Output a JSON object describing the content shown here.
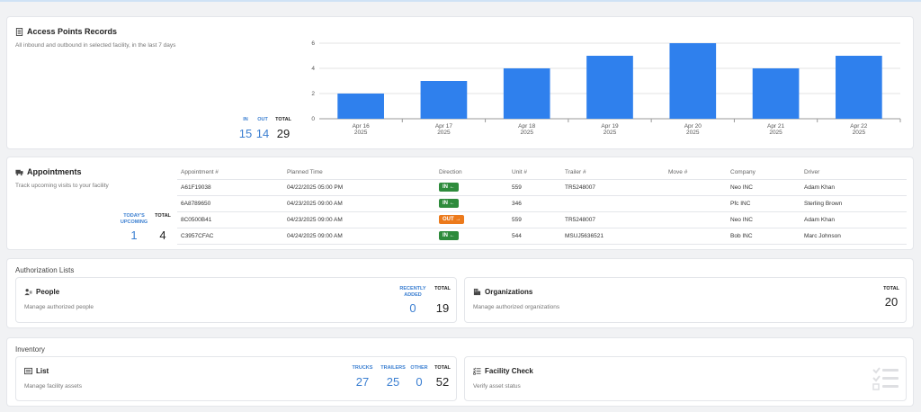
{
  "access_points": {
    "title": "Access Points Records",
    "subtitle": "All inbound and outbound in selected facility, in the last 7 days",
    "stats": [
      {
        "label": "IN",
        "value": "15"
      },
      {
        "label": "OUT",
        "value": "14"
      },
      {
        "label": "TOTAL",
        "value": "29"
      }
    ]
  },
  "chart_data": {
    "type": "bar",
    "categories": [
      "Apr 16\n2025",
      "Apr 17\n2025",
      "Apr 18\n2025",
      "Apr 19\n2025",
      "Apr 20\n2025",
      "Apr 21\n2025",
      "Apr 22\n2025"
    ],
    "category_lines": [
      [
        "Apr 16",
        "2025"
      ],
      [
        "Apr 17",
        "2025"
      ],
      [
        "Apr 18",
        "2025"
      ],
      [
        "Apr 19",
        "2025"
      ],
      [
        "Apr 20",
        "2025"
      ],
      [
        "Apr 21",
        "2025"
      ],
      [
        "Apr 22",
        "2025"
      ]
    ],
    "values": [
      2,
      3,
      4,
      5,
      6,
      4,
      5
    ],
    "ylim": [
      0,
      6
    ],
    "yticks": [
      "0",
      "2",
      "4",
      "6"
    ],
    "color": "#2f80ed",
    "grid": true,
    "title": "",
    "xlabel": "",
    "ylabel": ""
  },
  "appointments": {
    "title": "Appointments",
    "subtitle": "Track upcoming visits to your facility",
    "stats": [
      {
        "label": "TODAY'S UPCOMING",
        "value": "1"
      },
      {
        "label": "TOTAL",
        "value": "4"
      }
    ],
    "columns": [
      "Appointment #",
      "Planned Time",
      "Direction",
      "Unit #",
      "Trailer #",
      "Move #",
      "Company",
      "Driver"
    ],
    "rows": [
      {
        "appt": "A61F19038",
        "time": "04/22/2025 05:00 PM",
        "dir": "IN ←",
        "dir_type": "in",
        "unit": "559",
        "trailer": "TR5248007",
        "move": "",
        "company": "Neo INC",
        "driver": "Adam Khan"
      },
      {
        "appt": "6A8789650",
        "time": "04/23/2025 09:00 AM",
        "dir": "IN ←",
        "dir_type": "in",
        "unit": "346",
        "trailer": "",
        "move": "",
        "company": "Pfc INC",
        "driver": "Sterling Brown"
      },
      {
        "appt": "8C0500B41",
        "time": "04/23/2025 09:00 AM",
        "dir": "OUT →",
        "dir_type": "out",
        "unit": "559",
        "trailer": "TR5248007",
        "move": "",
        "company": "Neo INC",
        "driver": "Adam Khan"
      },
      {
        "appt": "C3957CFAC",
        "time": "04/24/2025 09:00 AM",
        "dir": "IN ←",
        "dir_type": "in",
        "unit": "544",
        "trailer": "MSUJ5636521",
        "move": "",
        "company": "Bob INC",
        "driver": "Marc Johnson"
      }
    ]
  },
  "authorization": {
    "section_title": "Authorization Lists",
    "people": {
      "title": "People",
      "desc": "Manage authorized people",
      "stats": [
        {
          "label": "RECENTLY ADDED",
          "value": "0"
        },
        {
          "label": "TOTAL",
          "value": "19"
        }
      ]
    },
    "organizations": {
      "title": "Organizations",
      "desc": "Manage authorized organizations",
      "stats": [
        {
          "label": "TOTAL",
          "value": "20"
        }
      ]
    }
  },
  "inventory": {
    "section_title": "Inventory",
    "list": {
      "title": "List",
      "desc": "Manage facility assets",
      "stats": [
        {
          "label": "TRUCKS",
          "value": "27"
        },
        {
          "label": "TRAILERS",
          "value": "25"
        },
        {
          "label": "OTHER",
          "value": "0"
        },
        {
          "label": "TOTAL",
          "value": "52"
        }
      ]
    },
    "facility_check": {
      "title": "Facility Check",
      "desc": "Verify asset status"
    }
  },
  "colors": {
    "accent_blue": "#3b7fd1",
    "bar_blue": "#2f80ed",
    "in_green": "#2e8b3c",
    "out_orange": "#ec7a1c"
  }
}
